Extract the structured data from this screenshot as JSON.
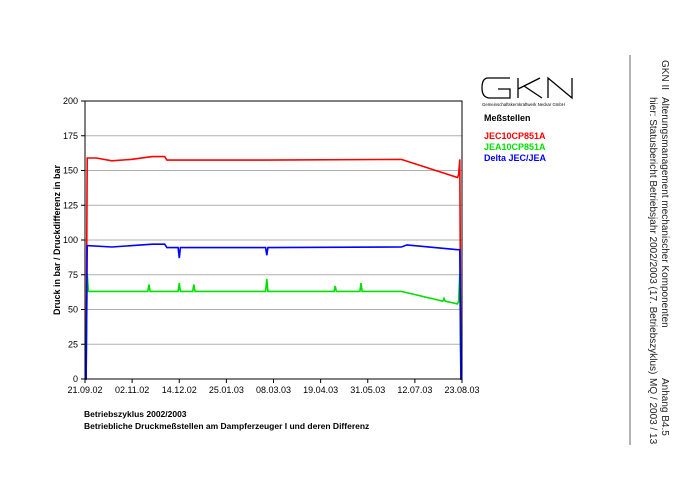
{
  "header": {
    "company": "GKN II",
    "title_line1": "Alterungsmanagement mechanischer Komponenten",
    "title_line2": "hier: Statusbericht Betriebsjahr 2002/2003 (17. Betriebszyklus)",
    "appendix": "Anhang B4.5",
    "doc_id": "MQ / 2003 / 13"
  },
  "logo": {
    "text": "GKN",
    "subtitle": "Gemeinschaftskernkraftwerk Neckar GmbH"
  },
  "legend": {
    "title": "Meßstellen",
    "items": [
      {
        "label": "JEC10CP851A",
        "color": "#ff0000"
      },
      {
        "label": "JEA10CP851A",
        "color": "#00e000"
      },
      {
        "label": "Delta JEC/JEA",
        "color": "#0000ff"
      }
    ]
  },
  "caption": {
    "line1": "Betriebszyklus 2002/2003",
    "line2": "Betriebliche Druckmeßstellen am Dampferzeuger I und deren Differenz"
  },
  "chart_data": {
    "type": "line",
    "title": "",
    "xlabel": "",
    "ylabel": "Druck in bar / Druckdifferenz in bar",
    "ylim": [
      0,
      200
    ],
    "yticks": [
      0,
      25,
      50,
      75,
      100,
      125,
      150,
      175,
      200
    ],
    "xlim": [
      "2002-09-21",
      "2003-08-23"
    ],
    "xtick_labels": [
      "21.09.02",
      "02.11.02",
      "14.12.02",
      "25.01.03",
      "08.03.03",
      "19.04.03",
      "31.05.03",
      "12.07.03",
      "23.08.03"
    ],
    "grid": "horizontal",
    "legend_position": "right",
    "series": [
      {
        "name": "JEC10CP851A",
        "color": "#ff0000",
        "points": [
          [
            "2002-09-21",
            0
          ],
          [
            "2002-09-22",
            0
          ],
          [
            "2002-09-23",
            159
          ],
          [
            "2002-10-01",
            159
          ],
          [
            "2002-10-15",
            157
          ],
          [
            "2002-11-01",
            158
          ],
          [
            "2002-11-20",
            160
          ],
          [
            "2002-12-01",
            160
          ],
          [
            "2002-12-03",
            157.5
          ],
          [
            "2003-03-01",
            157.5
          ],
          [
            "2003-06-30",
            158
          ],
          [
            "2003-08-19",
            145
          ],
          [
            "2003-08-20",
            147
          ],
          [
            "2003-08-21",
            158
          ],
          [
            "2003-08-22",
            0
          ],
          [
            "2003-08-23",
            0
          ]
        ]
      },
      {
        "name": "JEA10CP851A",
        "color": "#00e000",
        "points": [
          [
            "2002-09-21",
            0
          ],
          [
            "2002-09-22",
            0
          ],
          [
            "2002-09-23",
            76
          ],
          [
            "2002-09-24",
            63
          ],
          [
            "2002-11-16",
            63
          ],
          [
            "2002-11-17",
            68
          ],
          [
            "2002-11-18",
            63
          ],
          [
            "2002-12-13",
            63
          ],
          [
            "2002-12-14",
            69
          ],
          [
            "2002-12-15",
            63
          ],
          [
            "2002-12-26",
            63
          ],
          [
            "2002-12-27",
            68
          ],
          [
            "2002-12-28",
            63
          ],
          [
            "2003-03-01",
            63
          ],
          [
            "2003-03-02",
            72
          ],
          [
            "2003-03-03",
            63
          ],
          [
            "2003-05-01",
            63
          ],
          [
            "2003-05-02",
            67
          ],
          [
            "2003-05-03",
            63
          ],
          [
            "2003-05-24",
            63
          ],
          [
            "2003-05-25",
            69
          ],
          [
            "2003-05-26",
            63
          ],
          [
            "2003-06-30",
            63
          ],
          [
            "2003-08-06",
            56
          ],
          [
            "2003-08-07",
            58
          ],
          [
            "2003-08-08",
            56
          ],
          [
            "2003-08-19",
            54
          ],
          [
            "2003-08-20",
            56
          ],
          [
            "2003-08-21",
            76
          ],
          [
            "2003-08-22",
            0
          ],
          [
            "2003-08-23",
            0
          ]
        ]
      },
      {
        "name": "Delta JEC/JEA",
        "color": "#0000ff",
        "points": [
          [
            "2002-09-21",
            0
          ],
          [
            "2002-09-22",
            0
          ],
          [
            "2002-09-23",
            96
          ],
          [
            "2002-10-15",
            95
          ],
          [
            "2002-11-20",
            97
          ],
          [
            "2002-12-01",
            97
          ],
          [
            "2002-12-03",
            94.5
          ],
          [
            "2002-12-13",
            94.5
          ],
          [
            "2002-12-14",
            87
          ],
          [
            "2002-12-15",
            94.5
          ],
          [
            "2003-03-01",
            94.5
          ],
          [
            "2003-03-02",
            89
          ],
          [
            "2003-03-03",
            94.5
          ],
          [
            "2003-06-30",
            95
          ],
          [
            "2003-07-05",
            96.5
          ],
          [
            "2003-08-19",
            93
          ],
          [
            "2003-08-21",
            93
          ],
          [
            "2003-08-22",
            0
          ],
          [
            "2003-08-23",
            0
          ]
        ]
      }
    ]
  }
}
